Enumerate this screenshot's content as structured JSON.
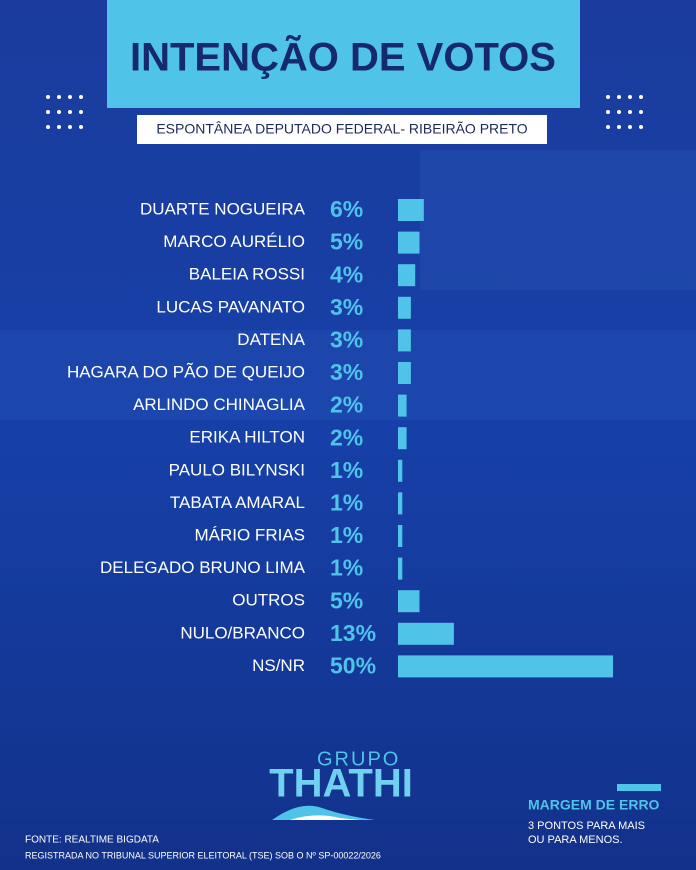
{
  "chart_data": {
    "type": "bar",
    "title": "INTENÇÃO DE VOTOS",
    "subtitle": "ESPONTÂNEA DEPUTADO FEDERAL- RIBEIRÃO PRETO",
    "categories": [
      "DUARTE NOGUEIRA",
      "MARCO AURÉLIO",
      "BALEIA ROSSI",
      "LUCAS PAVANATO",
      "DATENA",
      "HAGARA DO PÃO DE QUEIJO",
      "ARLINDO CHINAGLIA",
      "ERIKA HILTON",
      "PAULO BILYNSKI",
      "TABATA AMARAL",
      "MÁRIO FRIAS",
      "DELEGADO BRUNO LIMA",
      "OUTROS",
      "NULO/BRANCO",
      "NS/NR"
    ],
    "values": [
      6,
      5,
      4,
      3,
      3,
      3,
      2,
      2,
      1,
      1,
      1,
      1,
      5,
      13,
      50
    ],
    "value_labels": [
      "6%",
      "5%",
      "4%",
      "3%",
      "3%",
      "3%",
      "2%",
      "2%",
      "1%",
      "1%",
      "1%",
      "1%",
      "5%",
      "13%",
      "50%"
    ],
    "color": "#4fc3e8"
  },
  "footer": {
    "logo_top": "GRUPO",
    "logo_main": "THATHI",
    "margin_title": "MARGEM DE ERRO",
    "margin_line1": "3 PONTOS PARA MAIS",
    "margin_line2": "OU PARA MENOS.",
    "source": "FONTE: REALTIME BIGDATA",
    "registration": "REGISTRADA NO TRIBUNAL SUPERIOR ELEITORAL (TSE) SOB O Nº SP-00022/2026"
  }
}
